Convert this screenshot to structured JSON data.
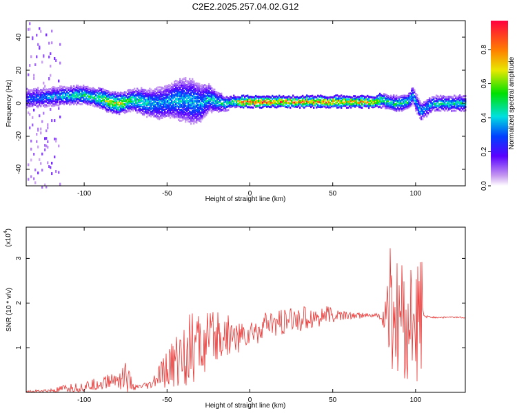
{
  "title": "C2E2.2025.257.04.02.G12",
  "chart_data": [
    {
      "type": "heatmap",
      "xlabel": "Height of straight line (km)",
      "ylabel": "Frequency (Hz)",
      "xlim": [
        -135,
        130
      ],
      "ylim": [
        -50,
        50
      ],
      "xticks": [
        -100,
        -50,
        0,
        50,
        100
      ],
      "yticks": [
        -40,
        -20,
        0,
        20,
        40
      ],
      "colorbar": {
        "label": "Normalized spectral amplitude",
        "range": [
          0.0,
          0.97
        ],
        "ticks": [
          0.0,
          0.2,
          0.4,
          0.6,
          0.8
        ],
        "tick_labels": [
          "0.0",
          "0.2",
          "0.4",
          "0.6",
          "0.8"
        ]
      },
      "ridge": {
        "x": [
          -135,
          -120,
          -105,
          -100,
          -95,
          -90,
          -85,
          -80,
          -75,
          -70,
          -65,
          -60,
          -55,
          -50,
          -45,
          -40,
          -35,
          -30,
          -25,
          -20,
          -15,
          -10,
          -5,
          0,
          10,
          20,
          30,
          40,
          50,
          60,
          70,
          75,
          80,
          85,
          90,
          95,
          98,
          100,
          103,
          110,
          120,
          130
        ],
        "y": [
          3,
          4,
          5,
          5,
          4,
          3,
          1,
          0,
          1,
          2,
          1,
          0,
          0,
          1,
          2,
          2,
          1,
          0,
          3,
          1,
          0,
          1,
          1,
          1,
          1,
          1,
          1,
          1,
          1,
          1,
          1,
          1,
          2,
          0,
          0,
          1,
          5,
          0,
          -5,
          0,
          0,
          0
        ],
        "amplitude": [
          0.3,
          0.4,
          0.5,
          0.55,
          0.5,
          0.6,
          0.7,
          0.75,
          0.6,
          0.55,
          0.5,
          0.45,
          0.4,
          0.4,
          0.45,
          0.4,
          0.45,
          0.4,
          0.45,
          0.45,
          0.5,
          0.6,
          0.9,
          0.95,
          0.92,
          0.85,
          0.85,
          0.85,
          0.8,
          0.8,
          0.8,
          0.8,
          0.55,
          0.5,
          0.55,
          0.5,
          0.45,
          0.4,
          0.4,
          0.45,
          0.5,
          0.5
        ],
        "spread": [
          6,
          5,
          5,
          5,
          5,
          6,
          6,
          6,
          6,
          6,
          8,
          8,
          10,
          10,
          12,
          14,
          14,
          12,
          8,
          6,
          4,
          3,
          3,
          3,
          3,
          3,
          3,
          3,
          3,
          3,
          3,
          3,
          4,
          4,
          4,
          4,
          5,
          5,
          5,
          4,
          4,
          4
        ]
      }
    },
    {
      "type": "line",
      "xlabel": "Height of straight line (km)",
      "ylabel": "SNR (10 * v/v)",
      "y_scale_label": "(x10",
      "y_scale_exponent": "4",
      "y_scale_close": ")",
      "xlim": [
        -135,
        130
      ],
      "ylim": [
        0,
        3.7
      ],
      "xticks": [
        -100,
        -50,
        0,
        50,
        100
      ],
      "yticks": [
        1,
        2,
        3
      ],
      "color": "#e8312f",
      "series": [
        {
          "name": "SNR",
          "x": [
            -135,
            -120,
            -110,
            -100,
            -90,
            -80,
            -75,
            -70,
            -60,
            -55,
            -50,
            -45,
            -40,
            -35,
            -30,
            -25,
            -20,
            -15,
            -10,
            -5,
            0,
            5,
            10,
            20,
            30,
            40,
            50,
            60,
            70,
            75,
            78,
            80,
            83,
            85,
            88,
            90,
            93,
            95,
            98,
            100,
            103,
            104,
            105,
            110,
            120,
            130
          ],
          "y": [
            0.02,
            0.03,
            0.08,
            0.12,
            0.2,
            0.3,
            0.35,
            0.1,
            0.15,
            0.35,
            0.5,
            0.7,
            0.85,
            1.0,
            1.05,
            1.1,
            1.2,
            1.3,
            1.25,
            1.25,
            1.3,
            1.4,
            1.5,
            1.55,
            1.65,
            1.7,
            1.72,
            1.72,
            1.72,
            1.72,
            1.72,
            1.6,
            1.7,
            1.75,
            1.5,
            1.7,
            1.4,
            1.6,
            1.5,
            1.6,
            1.5,
            1.7,
            1.7,
            1.68,
            1.68,
            1.68
          ],
          "noise": [
            0.02,
            0.05,
            0.1,
            0.12,
            0.15,
            0.2,
            0.4,
            0.05,
            0.1,
            0.25,
            0.45,
            0.6,
            0.75,
            0.8,
            0.8,
            0.7,
            0.6,
            0.5,
            0.4,
            0.35,
            0.3,
            0.3,
            0.3,
            0.3,
            0.3,
            0.25,
            0.2,
            0.08,
            0.06,
            0.05,
            0.05,
            0.1,
            1.4,
            1.6,
            1.5,
            1.3,
            1.5,
            1.4,
            1.3,
            1.3,
            1.6,
            1.9,
            0.03,
            0.02,
            0.02,
            0.02
          ]
        }
      ]
    }
  ]
}
